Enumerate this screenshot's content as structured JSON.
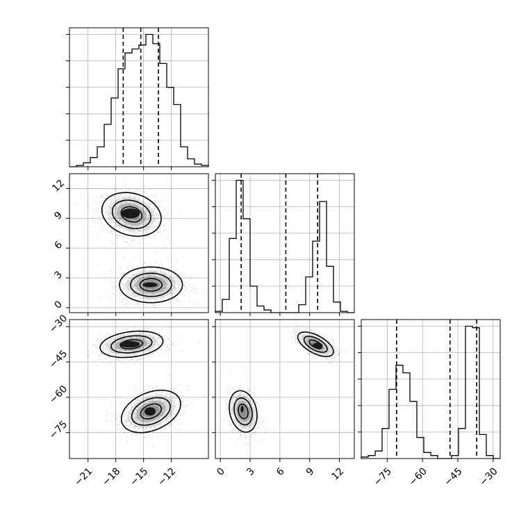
{
  "chart_data": {
    "type": "corner",
    "params": [
      {
        "range": [
          -23,
          -8
        ],
        "ticks": [
          -21,
          -18,
          -15,
          -12
        ],
        "tick_labels": [
          "−21",
          "−18",
          "−15",
          "−12"
        ]
      },
      {
        "range": [
          -0.5,
          13.5
        ],
        "ticks": [
          0,
          3,
          6,
          9,
          12
        ],
        "tick_labels": [
          "0",
          "3",
          "6",
          "9",
          "12"
        ]
      },
      {
        "range": [
          -86,
          -27
        ],
        "ticks": [
          -75,
          -60,
          -45,
          -30
        ],
        "tick_labels": [
          "−75",
          "−60",
          "−45",
          "−30"
        ]
      }
    ],
    "histograms": [
      {
        "param": 0,
        "edges": [
          -23,
          -22.25,
          -21.5,
          -20.75,
          -20,
          -19.25,
          -18.5,
          -17.75,
          -17,
          -16.25,
          -15.5,
          -14.75,
          -14,
          -13.25,
          -12.5,
          -11.75,
          -11,
          -10.25,
          -9.5,
          -8.75,
          -8
        ],
        "counts": [
          0,
          0.01,
          0.03,
          0.07,
          0.15,
          0.32,
          0.52,
          0.74,
          0.86,
          0.89,
          0.92,
          1.0,
          0.93,
          0.78,
          0.6,
          0.47,
          0.15,
          0.06,
          0.02,
          0.01
        ],
        "quantiles": [
          -17.2,
          -15.3,
          -13.4
        ]
      },
      {
        "param": 1,
        "edges": [
          -0.5,
          0.2,
          0.9,
          1.6,
          2.3,
          3.0,
          3.7,
          4.4,
          5.1,
          5.8,
          6.5,
          7.2,
          7.9,
          8.6,
          9.3,
          10.0,
          10.7,
          11.4,
          12.1,
          12.8,
          13.5
        ],
        "counts": [
          0.01,
          0.1,
          0.56,
          1.0,
          0.71,
          0.2,
          0.05,
          0.02,
          0.0,
          0.0,
          0.0,
          0.0,
          0.06,
          0.27,
          0.54,
          0.84,
          0.35,
          0.08,
          0.01,
          0.0
        ],
        "quantiles": [
          2.1,
          6.6,
          9.8
        ]
      },
      {
        "param": 2,
        "edges": [
          -86,
          -83.05,
          -80.1,
          -77.15,
          -74.2,
          -71.25,
          -68.3,
          -65.35,
          -62.4,
          -59.45,
          -56.5,
          -53.55,
          -50.6,
          -47.65,
          -44.7,
          -41.75,
          -38.8,
          -35.85,
          -32.9,
          -29.95,
          -27
        ],
        "counts": [
          0.01,
          0.02,
          0.05,
          0.2,
          0.46,
          0.62,
          0.57,
          0.38,
          0.14,
          0.04,
          0.02,
          0.0,
          0.0,
          0.02,
          0.2,
          0.88,
          0.87,
          0.16,
          0.02,
          0.0
        ],
        "quantiles": [
          -71,
          -48.3,
          -37
        ]
      }
    ],
    "pairs": [
      {
        "x_param": 0,
        "y_param": 1,
        "clusters": [
          {
            "cx": -16.3,
            "cy": 9.4,
            "sx": 1.6,
            "sy": 1.1,
            "rho": -0.2,
            "n": 1300
          },
          {
            "cx": -14.2,
            "cy": 2.3,
            "sx": 1.7,
            "sy": 0.9,
            "rho": 0.0,
            "n": 1300
          }
        ],
        "peaks": [
          {
            "cx": -16.4,
            "cy": 9.5,
            "rx": 1.0,
            "ry": 0.5
          },
          {
            "cx": -14.3,
            "cy": 2.3,
            "rx": 0.8,
            "ry": 0.25
          }
        ]
      },
      {
        "x_param": 0,
        "y_param": 2,
        "clusters": [
          {
            "cx": -16.3,
            "cy": -37.5,
            "sx": 1.7,
            "sy": 2.8,
            "rho": 0.25,
            "n": 1300
          },
          {
            "cx": -14.2,
            "cy": -66,
            "sx": 1.6,
            "sy": 4.5,
            "rho": 0.35,
            "n": 1300
          }
        ],
        "peaks": [
          {
            "cx": -16.5,
            "cy": -37.5,
            "rx": 1.1,
            "ry": 1.4
          },
          {
            "cx": -14.3,
            "cy": -66,
            "rx": 0.6,
            "ry": 1.8
          }
        ]
      },
      {
        "x_param": 1,
        "y_param": 2,
        "clusters": [
          {
            "cx": 9.6,
            "cy": -37.5,
            "sx": 0.9,
            "sy": 2.6,
            "rho": -0.6,
            "n": 1300
          },
          {
            "cx": 2.3,
            "cy": -66,
            "sx": 0.7,
            "sy": 4.4,
            "rho": -0.2,
            "n": 1300
          }
        ],
        "peaks": [
          {
            "cx": 9.8,
            "cy": -38,
            "rx": 0.5,
            "ry": 1.2
          },
          {
            "cx": 2.2,
            "cy": -65,
            "rx": 0.15,
            "ry": 1.5
          }
        ]
      }
    ],
    "grid": true,
    "title": "",
    "xlabel": "",
    "ylabel": ""
  }
}
